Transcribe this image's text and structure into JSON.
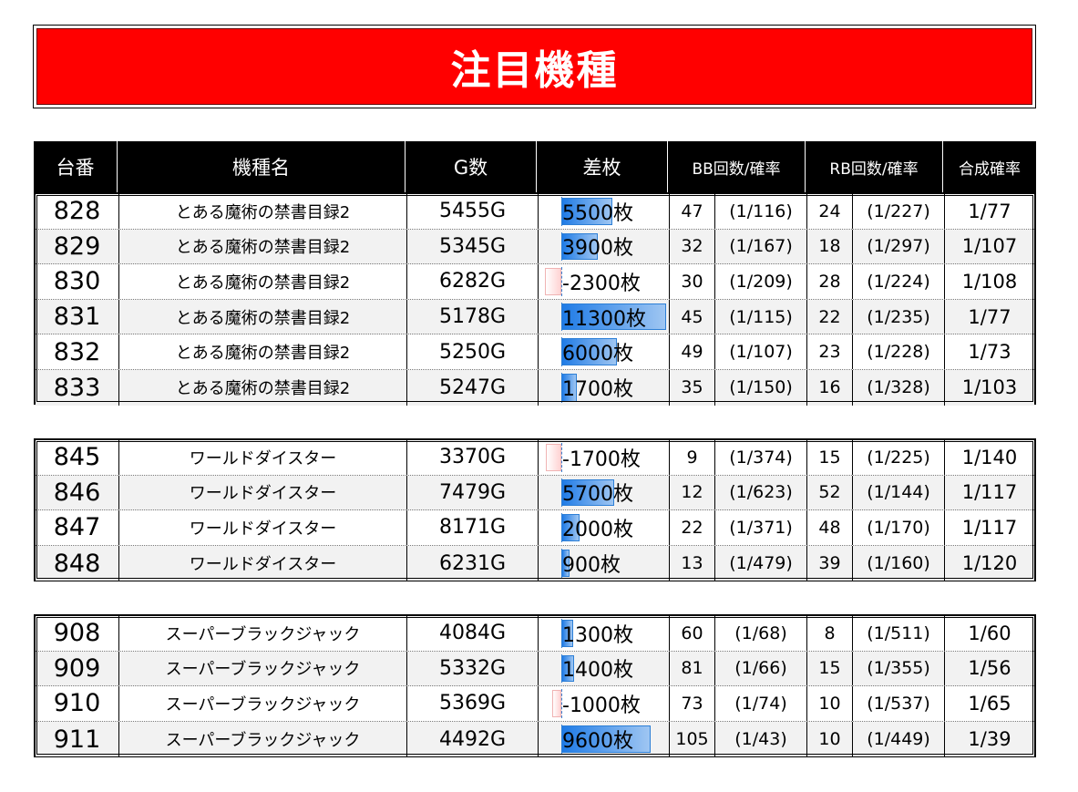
{
  "title": "注目機種",
  "headers": {
    "num": "台番",
    "name": "機種名",
    "games": "G数",
    "diff": "差枚",
    "bb": "BB回数/確率",
    "rb": "RB回数/確率",
    "combined": "合成確率"
  },
  "groups": [
    {
      "rows": [
        {
          "num": "828",
          "name": "とある魔術の禁書目録2",
          "games": "5455G",
          "diff": "5500枚",
          "diff_value": 5500,
          "bb": "47",
          "bb_prob": "(1/116)",
          "rb": "24",
          "rb_prob": "(1/227)",
          "combined": "1/77"
        },
        {
          "num": "829",
          "name": "とある魔術の禁書目録2",
          "games": "5345G",
          "diff": "3900枚",
          "diff_value": 3900,
          "bb": "32",
          "bb_prob": "(1/167)",
          "rb": "18",
          "rb_prob": "(1/297)",
          "combined": "1/107"
        },
        {
          "num": "830",
          "name": "とある魔術の禁書目録2",
          "games": "6282G",
          "diff": "-2300枚",
          "diff_value": -2300,
          "bb": "30",
          "bb_prob": "(1/209)",
          "rb": "28",
          "rb_prob": "(1/224)",
          "combined": "1/108"
        },
        {
          "num": "831",
          "name": "とある魔術の禁書目録2",
          "games": "5178G",
          "diff": "11300枚",
          "diff_value": 11300,
          "bb": "45",
          "bb_prob": "(1/115)",
          "rb": "22",
          "rb_prob": "(1/235)",
          "combined": "1/77"
        },
        {
          "num": "832",
          "name": "とある魔術の禁書目録2",
          "games": "5250G",
          "diff": "6000枚",
          "diff_value": 6000,
          "bb": "49",
          "bb_prob": "(1/107)",
          "rb": "23",
          "rb_prob": "(1/228)",
          "combined": "1/73"
        },
        {
          "num": "833",
          "name": "とある魔術の禁書目録2",
          "games": "5247G",
          "diff": "1700枚",
          "diff_value": 1700,
          "bb": "35",
          "bb_prob": "(1/150)",
          "rb": "16",
          "rb_prob": "(1/328)",
          "combined": "1/103"
        }
      ]
    },
    {
      "rows": [
        {
          "num": "845",
          "name": "ワールドダイスター",
          "games": "3370G",
          "diff": "-1700枚",
          "diff_value": -1700,
          "bb": "9",
          "bb_prob": "(1/374)",
          "rb": "15",
          "rb_prob": "(1/225)",
          "combined": "1/140"
        },
        {
          "num": "846",
          "name": "ワールドダイスター",
          "games": "7479G",
          "diff": "5700枚",
          "diff_value": 5700,
          "bb": "12",
          "bb_prob": "(1/623)",
          "rb": "52",
          "rb_prob": "(1/144)",
          "combined": "1/117"
        },
        {
          "num": "847",
          "name": "ワールドダイスター",
          "games": "8171G",
          "diff": "2000枚",
          "diff_value": 2000,
          "bb": "22",
          "bb_prob": "(1/371)",
          "rb": "48",
          "rb_prob": "(1/170)",
          "combined": "1/117"
        },
        {
          "num": "848",
          "name": "ワールドダイスター",
          "games": "6231G",
          "diff": "900枚",
          "diff_value": 900,
          "bb": "13",
          "bb_prob": "(1/479)",
          "rb": "39",
          "rb_prob": "(1/160)",
          "combined": "1/120"
        }
      ]
    },
    {
      "rows": [
        {
          "num": "908",
          "name": "スーパーブラックジャック",
          "games": "4084G",
          "diff": "1300枚",
          "diff_value": 1300,
          "bb": "60",
          "bb_prob": "(1/68)",
          "rb": "8",
          "rb_prob": "(1/511)",
          "combined": "1/60"
        },
        {
          "num": "909",
          "name": "スーパーブラックジャック",
          "games": "5332G",
          "diff": "1400枚",
          "diff_value": 1400,
          "bb": "81",
          "bb_prob": "(1/66)",
          "rb": "15",
          "rb_prob": "(1/355)",
          "combined": "1/56"
        },
        {
          "num": "910",
          "name": "スーパーブラックジャック",
          "games": "5369G",
          "diff": "-1000枚",
          "diff_value": -1000,
          "bb": "73",
          "bb_prob": "(1/74)",
          "rb": "10",
          "rb_prob": "(1/537)",
          "combined": "1/65"
        },
        {
          "num": "911",
          "name": "スーパーブラックジャック",
          "games": "4492G",
          "diff": "9600枚",
          "diff_value": 9600,
          "bb": "105",
          "bb_prob": "(1/43)",
          "rb": "10",
          "rb_prob": "(1/449)",
          "combined": "1/39"
        }
      ]
    }
  ]
}
